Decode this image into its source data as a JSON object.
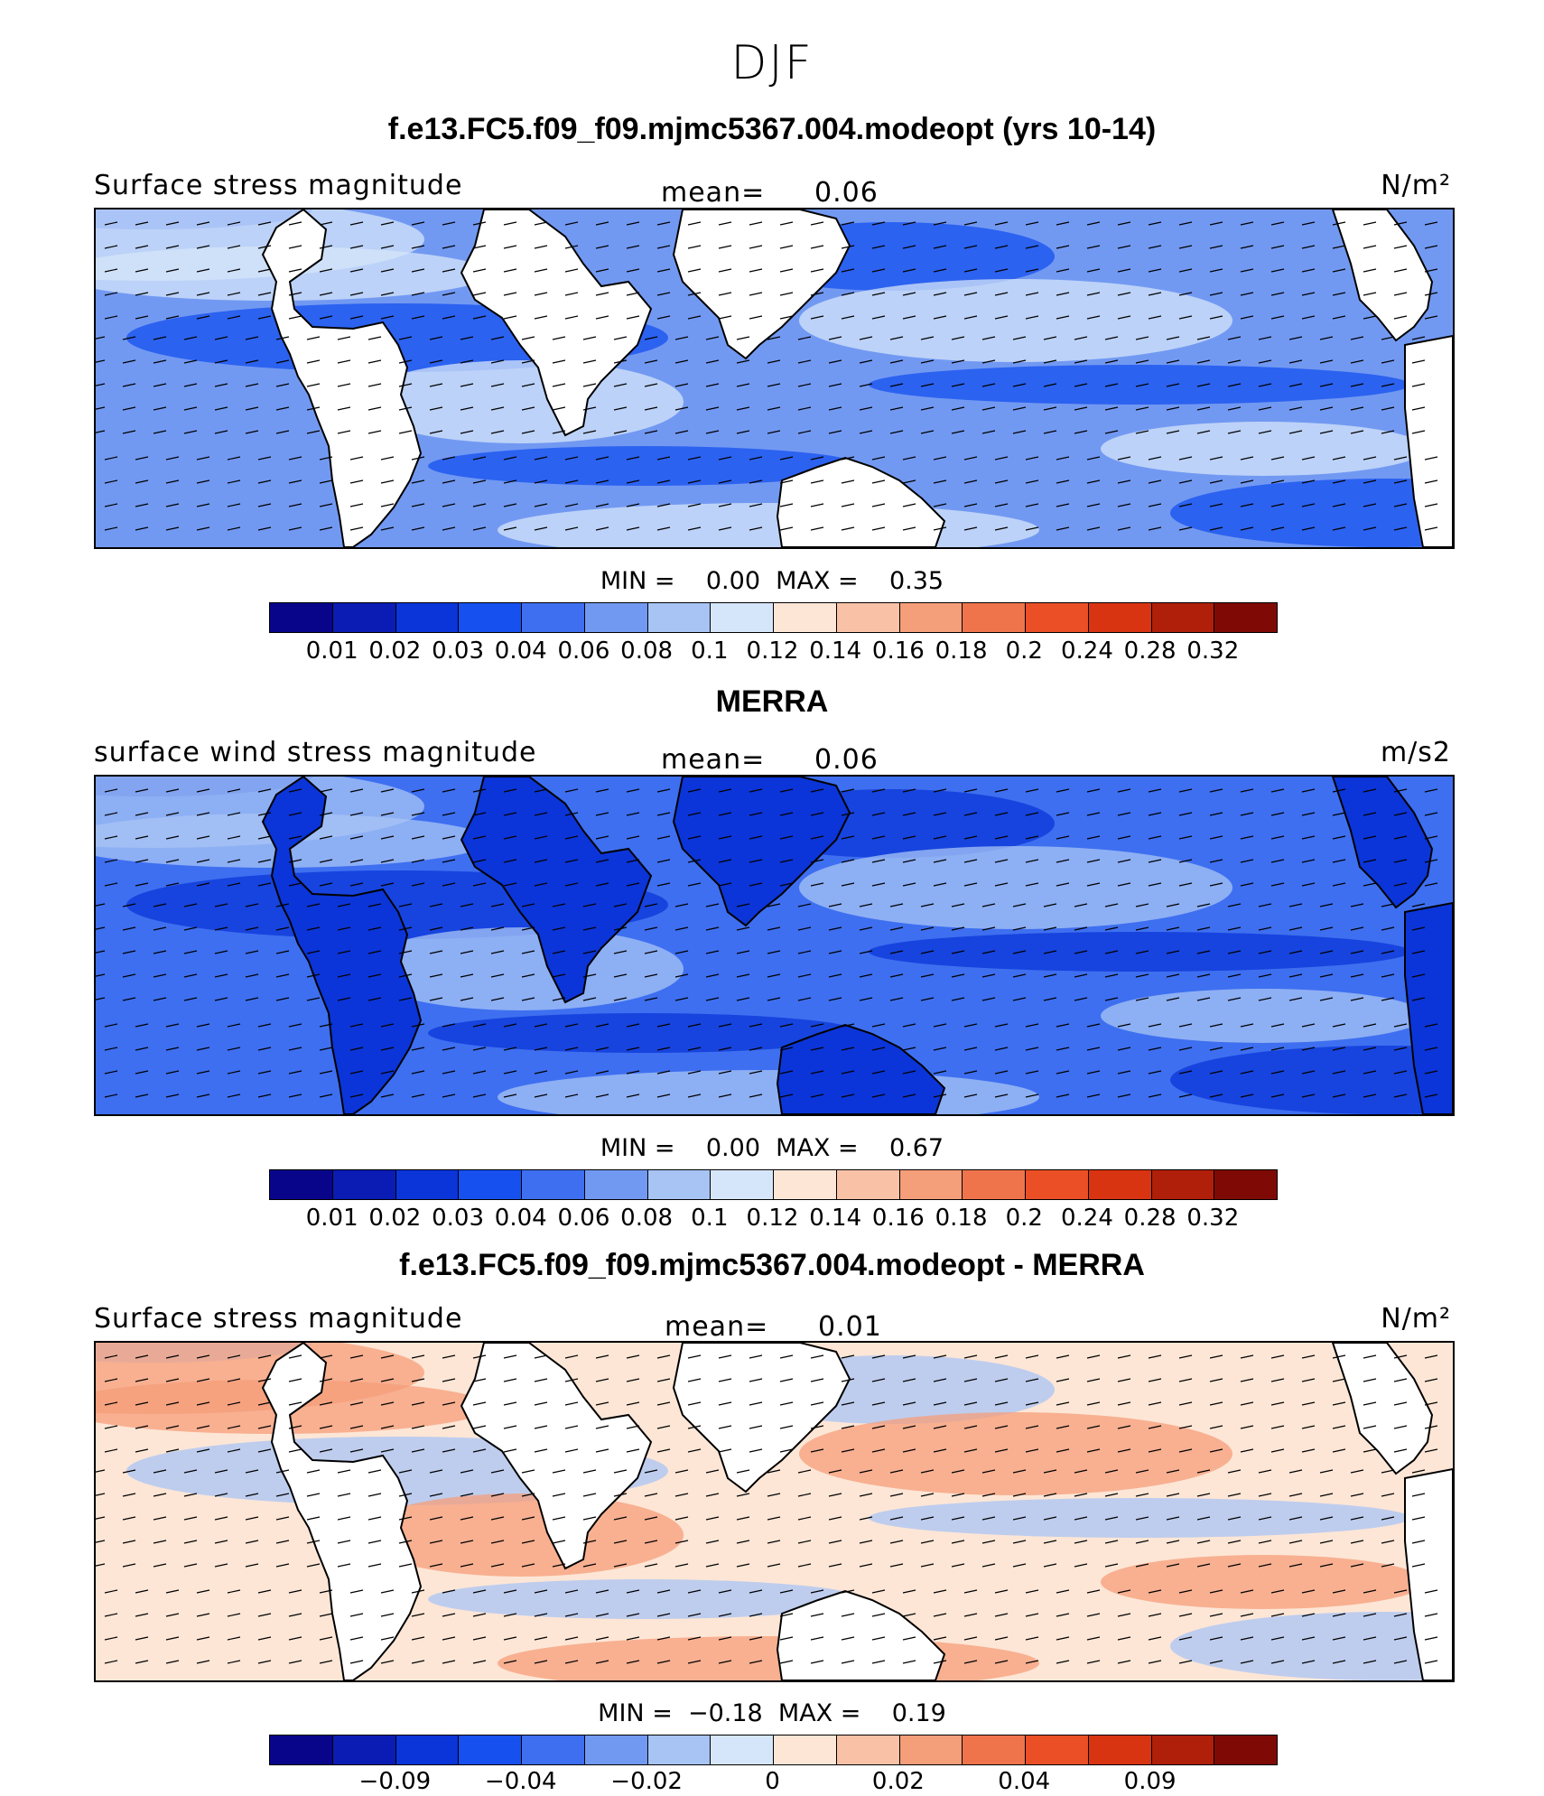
{
  "season": "DJF",
  "colors": {
    "scale": [
      "#08058a",
      "#0a1cb3",
      "#0b35d8",
      "#1650ef",
      "#3e6ff0",
      "#7299f2",
      "#a8c4f5",
      "#d6e6fa",
      "#fde6d6",
      "#f9c2a7",
      "#f59e7a",
      "#ef744c",
      "#ea4f26",
      "#d93412",
      "#b01f0a",
      "#7f0a05"
    ]
  },
  "panels": [
    {
      "title": "f.e13.FC5.f09_f09.mjmc5367.004.modeopt (yrs 10-14)",
      "label": "Surface stress magnitude",
      "mean_label": "mean=",
      "mean_value": "0.06",
      "units": "N/m²",
      "minmax": "MIN =    0.00  MAX =    0.35",
      "ticks": [
        "0.01",
        "0.02",
        "0.03",
        "0.04",
        "0.06",
        "0.08",
        "0.1",
        "0.12",
        "0.14",
        "0.16",
        "0.18",
        "0.2",
        "0.24",
        "0.28",
        "0.32"
      ],
      "fill_level": 0.3
    },
    {
      "title": "MERRA",
      "label": "surface wind stress magnitude",
      "mean_label": "mean=",
      "mean_value": "0.06",
      "units": "m/s2",
      "minmax": "MIN =    0.00  MAX =    0.67",
      "ticks": [
        "0.01",
        "0.02",
        "0.03",
        "0.04",
        "0.06",
        "0.08",
        "0.1",
        "0.12",
        "0.14",
        "0.16",
        "0.18",
        "0.2",
        "0.24",
        "0.28",
        "0.32"
      ],
      "fill_level": 0.28
    },
    {
      "title": "f.e13.FC5.f09_f09.mjmc5367.004.modeopt - MERRA",
      "label": "Surface stress magnitude",
      "mean_label": "mean=",
      "mean_value": "0.01",
      "units": "N/m²",
      "minmax": "MIN =  −0.18  MAX =    0.19",
      "ticks": [
        "−0.09",
        "−0.04",
        "−0.02",
        "0",
        "0.02",
        "0.04",
        "0.09"
      ],
      "fill_level": 0.55
    }
  ]
}
